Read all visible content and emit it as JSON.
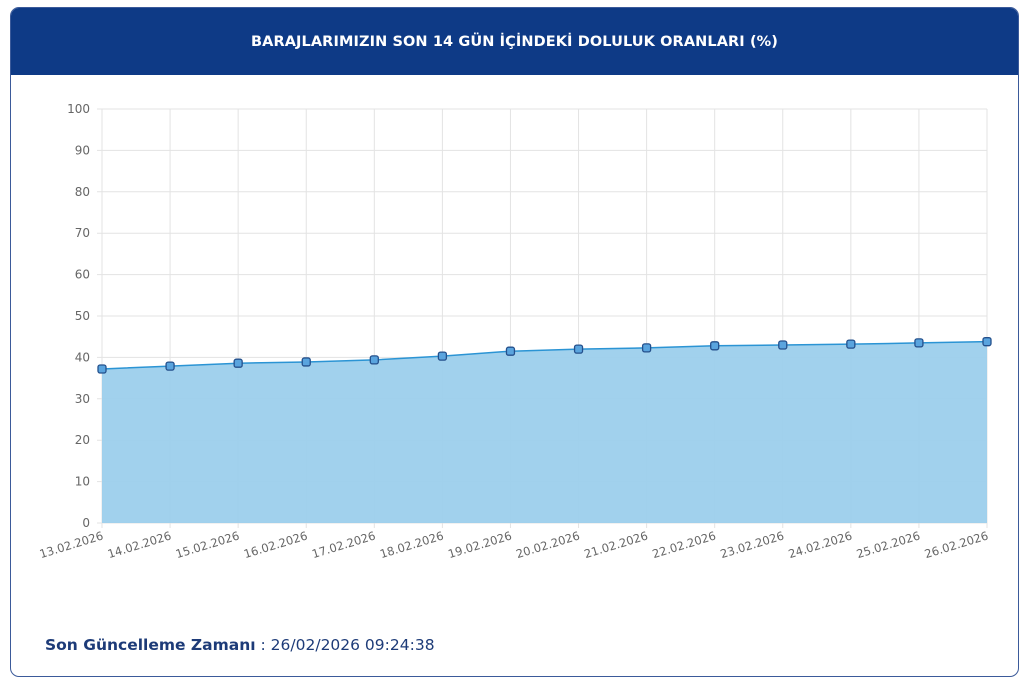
{
  "header": {
    "title": "BARAJLARIMIZIN SON 14 GÜN İÇİNDEKİ DOLULUK ORANLARI (%)"
  },
  "footer": {
    "label": "Son Güncelleme Zamanı",
    "separator": " : ",
    "value": "26/02/2026 09:24:38"
  },
  "colors": {
    "header": "#0e3a86",
    "fill": "#9ccfec",
    "line": "#2b94d4",
    "marker": "#5aa4de",
    "marker_border": "#24508c"
  },
  "chart_data": {
    "type": "area",
    "title": "BARAJLARIMIZIN SON 14 GÜN İÇİNDEKİ DOLULUK ORANLARI (%)",
    "xlabel": "",
    "ylabel": "",
    "ylim": [
      0,
      100
    ],
    "yticks": [
      0,
      10,
      20,
      30,
      40,
      50,
      60,
      70,
      80,
      90,
      100
    ],
    "grid": true,
    "categories": [
      "13.02.2026",
      "14.02.2026",
      "15.02.2026",
      "16.02.2026",
      "17.02.2026",
      "18.02.2026",
      "19.02.2026",
      "20.02.2026",
      "21.02.2026",
      "22.02.2026",
      "23.02.2026",
      "24.02.2026",
      "25.02.2026",
      "26.02.2026"
    ],
    "values": [
      37.2,
      37.9,
      38.6,
      38.9,
      39.4,
      40.3,
      41.5,
      42.0,
      42.3,
      42.8,
      43.0,
      43.2,
      43.5,
      43.8
    ]
  }
}
